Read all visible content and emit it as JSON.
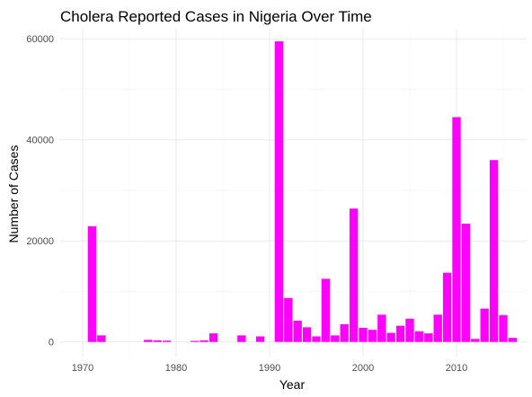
{
  "chart_data": {
    "type": "bar",
    "title": "Cholera Reported Cases in Nigeria Over Time",
    "xlabel": "Year",
    "ylabel": "Number of Cases",
    "xlim": [
      1967.5,
      2017.5
    ],
    "ylim": [
      -2900,
      62000
    ],
    "x_ticks": [
      1970,
      1980,
      1990,
      2000,
      2010
    ],
    "y_ticks": [
      0,
      20000,
      40000,
      60000
    ],
    "grid": true,
    "legend": "none",
    "bar_color": "#FF00FF",
    "x": [
      1971,
      1972,
      1977,
      1978,
      1979,
      1982,
      1983,
      1984,
      1987,
      1989,
      1991,
      1992,
      1993,
      1994,
      1995,
      1996,
      1997,
      1998,
      1999,
      2000,
      2001,
      2002,
      2003,
      2004,
      2005,
      2006,
      2007,
      2008,
      2009,
      2010,
      2011,
      2012,
      2013,
      2014,
      2015,
      2016
    ],
    "values": [
      22900,
      1300,
      400,
      300,
      250,
      200,
      300,
      1700,
      1300,
      1100,
      59500,
      8700,
      4200,
      2900,
      1100,
      12500,
      1300,
      3500,
      26400,
      2800,
      2400,
      5400,
      1800,
      3200,
      4600,
      2100,
      1700,
      5400,
      13700,
      44500,
      23400,
      600,
      6600,
      36000,
      5300,
      800
    ]
  }
}
